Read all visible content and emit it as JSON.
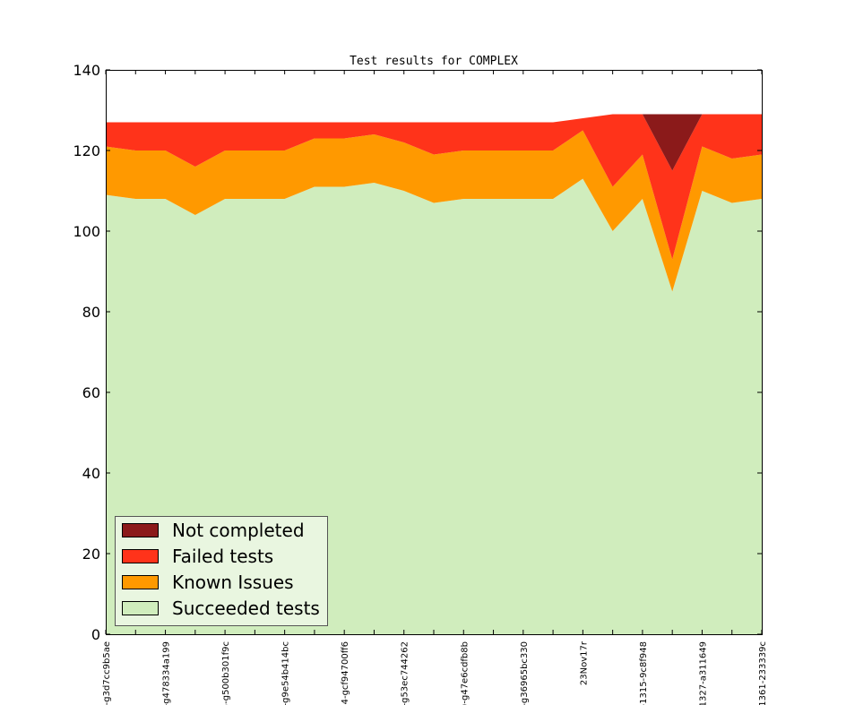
{
  "chart_data": {
    "type": "area",
    "stacked": true,
    "title": "Test results for COMPLEX",
    "xlabel": "",
    "ylabel": "",
    "ylim": [
      0,
      140
    ],
    "yticks": [
      0,
      20,
      40,
      60,
      80,
      100,
      120,
      140
    ],
    "legend": "lower-left",
    "grid": false,
    "x_tick_labels": [
      "l-g3d7cc9b5ae",
      "",
      "-g478334a199",
      "",
      "5-g500b301f9c",
      "",
      "-g9e54b414bc",
      "",
      "4-gcf94700ff6",
      "",
      "-g53ec744262",
      "",
      ")-g47e6cdfb8b",
      "",
      "-g36965bc330",
      "",
      "23Nov17r",
      "",
      "-1315-9c8f948",
      "",
      "1327-a311649",
      "",
      "1361-233339c"
    ],
    "series": [
      {
        "name": "Succeeded tests",
        "color": "#d0edbd",
        "values": [
          109,
          108,
          108,
          104,
          108,
          108,
          108,
          111,
          111,
          112,
          110,
          107,
          108,
          108,
          108,
          108,
          113,
          100,
          108,
          85,
          110,
          107,
          108
        ]
      },
      {
        "name": "Known Issues",
        "color": "#ff9900",
        "values": [
          12,
          12,
          12,
          12,
          12,
          12,
          12,
          12,
          12,
          12,
          12,
          12,
          12,
          12,
          12,
          12,
          12,
          11,
          11,
          8,
          11,
          11,
          11
        ]
      },
      {
        "name": "Failed tests",
        "color": "#ff331a",
        "values": [
          6,
          7,
          7,
          11,
          7,
          7,
          7,
          4,
          4,
          3,
          5,
          8,
          7,
          7,
          7,
          7,
          3,
          18,
          10,
          22,
          8,
          11,
          10
        ]
      },
      {
        "name": "Not completed",
        "color": "#8b1a1a",
        "values": [
          0,
          0,
          0,
          0,
          0,
          0,
          0,
          0,
          0,
          0,
          0,
          0,
          0,
          0,
          0,
          0,
          0,
          0,
          0,
          14,
          0,
          0,
          0
        ]
      }
    ],
    "legend_order": [
      "Not completed",
      "Failed tests",
      "Known Issues",
      "Succeeded tests"
    ]
  }
}
